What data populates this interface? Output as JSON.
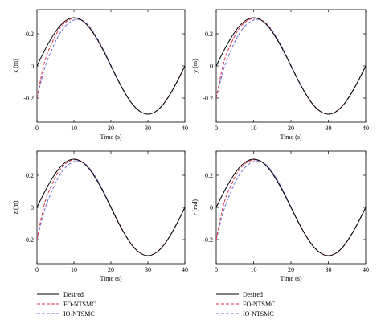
{
  "legend": {
    "entries": [
      {
        "label": "Desired",
        "color": "#000000",
        "dash": "solid"
      },
      {
        "label": "FO-NTSMC",
        "color": "#d9324b",
        "dash": "dashed"
      },
      {
        "label": "IO-NTSMC",
        "color": "#6f6fd6",
        "dash": "dashed"
      }
    ],
    "placement": "below each column"
  },
  "chart_data": [
    {
      "type": "line",
      "xlabel": "Time (s)",
      "ylabel": "x (m)",
      "xlim": [
        0,
        40
      ],
      "ylim": [
        -0.35,
        0.35
      ],
      "xticks": [
        "0",
        "10",
        "20",
        "30",
        "40"
      ],
      "yticks": [
        "0.2",
        "0",
        "-0.2"
      ],
      "grid": false,
      "series": [
        {
          "name": "Desired",
          "x": [
            0,
            2,
            4,
            6,
            8,
            10,
            12,
            14,
            16,
            18,
            20,
            22,
            24,
            26,
            28,
            30,
            32,
            34,
            36,
            38,
            40
          ],
          "y": [
            0.0,
            0.093,
            0.176,
            0.243,
            0.285,
            0.3,
            0.285,
            0.243,
            0.176,
            0.093,
            0.0,
            -0.093,
            -0.176,
            -0.243,
            -0.285,
            -0.3,
            -0.285,
            -0.243,
            -0.176,
            -0.093,
            0.0
          ]
        },
        {
          "name": "FO-NTSMC",
          "x": [
            0,
            2,
            4,
            6,
            8,
            10,
            12,
            14,
            16,
            18,
            20,
            22,
            24,
            26,
            28,
            30,
            32,
            34,
            36,
            38,
            40
          ],
          "y": [
            -0.2,
            0.02,
            0.14,
            0.228,
            0.277,
            0.296,
            0.287,
            0.245,
            0.177,
            0.094,
            0.0,
            -0.093,
            -0.176,
            -0.243,
            -0.285,
            -0.3,
            -0.285,
            -0.243,
            -0.176,
            -0.093,
            0.0
          ]
        },
        {
          "name": "IO-NTSMC",
          "x": [
            0,
            2,
            4,
            6,
            8,
            10,
            12,
            14,
            16,
            18,
            20,
            22,
            24,
            26,
            28,
            30,
            32,
            34,
            36,
            38,
            40
          ],
          "y": [
            -0.2,
            -0.02,
            0.1,
            0.195,
            0.255,
            0.285,
            0.286,
            0.25,
            0.185,
            0.1,
            0.005,
            -0.09,
            -0.174,
            -0.242,
            -0.284,
            -0.3,
            -0.285,
            -0.243,
            -0.176,
            -0.093,
            0.0
          ]
        }
      ]
    },
    {
      "type": "line",
      "xlabel": "Time (s)",
      "ylabel": "y (m)",
      "xlim": [
        0,
        40
      ],
      "ylim": [
        -0.35,
        0.35
      ],
      "xticks": [
        "0",
        "10",
        "20",
        "30",
        "40"
      ],
      "yticks": [
        "0.2",
        "0",
        "-0.2"
      ],
      "grid": false,
      "series": [
        {
          "name": "Desired",
          "x": [
            0,
            2,
            4,
            6,
            8,
            10,
            12,
            14,
            16,
            18,
            20,
            22,
            24,
            26,
            28,
            30,
            32,
            34,
            36,
            38,
            40
          ],
          "y": [
            0.0,
            0.093,
            0.176,
            0.243,
            0.285,
            0.3,
            0.285,
            0.243,
            0.176,
            0.093,
            0.0,
            -0.093,
            -0.176,
            -0.243,
            -0.285,
            -0.3,
            -0.285,
            -0.243,
            -0.176,
            -0.093,
            0.0
          ]
        },
        {
          "name": "FO-NTSMC",
          "x": [
            0,
            2,
            4,
            6,
            8,
            10,
            12,
            14,
            16,
            18,
            20,
            22,
            24,
            26,
            28,
            30,
            32,
            34,
            36,
            38,
            40
          ],
          "y": [
            -0.2,
            0.02,
            0.14,
            0.228,
            0.277,
            0.296,
            0.287,
            0.245,
            0.177,
            0.094,
            0.0,
            -0.093,
            -0.176,
            -0.243,
            -0.285,
            -0.3,
            -0.285,
            -0.243,
            -0.176,
            -0.093,
            0.0
          ]
        },
        {
          "name": "IO-NTSMC",
          "x": [
            0,
            2,
            4,
            6,
            8,
            10,
            12,
            14,
            16,
            18,
            20,
            22,
            24,
            26,
            28,
            30,
            32,
            34,
            36,
            38,
            40
          ],
          "y": [
            -0.2,
            -0.02,
            0.1,
            0.195,
            0.255,
            0.285,
            0.286,
            0.25,
            0.185,
            0.1,
            0.005,
            -0.09,
            -0.174,
            -0.242,
            -0.284,
            -0.3,
            -0.285,
            -0.243,
            -0.176,
            -0.093,
            0.0
          ]
        }
      ]
    },
    {
      "type": "line",
      "xlabel": "Time (s)",
      "ylabel": "z (m)",
      "xlim": [
        0,
        40
      ],
      "ylim": [
        -0.35,
        0.35
      ],
      "xticks": [
        "0",
        "10",
        "20",
        "30",
        "40"
      ],
      "yticks": [
        "0.2",
        "0",
        "-0.2"
      ],
      "grid": false,
      "series": [
        {
          "name": "Desired",
          "x": [
            0,
            2,
            4,
            6,
            8,
            10,
            12,
            14,
            16,
            18,
            20,
            22,
            24,
            26,
            28,
            30,
            32,
            34,
            36,
            38,
            40
          ],
          "y": [
            0.0,
            0.093,
            0.176,
            0.243,
            0.285,
            0.3,
            0.285,
            0.243,
            0.176,
            0.093,
            0.0,
            -0.093,
            -0.176,
            -0.243,
            -0.285,
            -0.3,
            -0.285,
            -0.243,
            -0.176,
            -0.093,
            0.0
          ]
        },
        {
          "name": "FO-NTSMC",
          "x": [
            0,
            2,
            4,
            6,
            8,
            10,
            12,
            14,
            16,
            18,
            20,
            22,
            24,
            26,
            28,
            30,
            32,
            34,
            36,
            38,
            40
          ],
          "y": [
            -0.2,
            0.02,
            0.14,
            0.228,
            0.277,
            0.296,
            0.287,
            0.245,
            0.177,
            0.094,
            0.0,
            -0.093,
            -0.176,
            -0.243,
            -0.285,
            -0.3,
            -0.285,
            -0.243,
            -0.176,
            -0.093,
            0.0
          ]
        },
        {
          "name": "IO-NTSMC",
          "x": [
            0,
            2,
            4,
            6,
            8,
            10,
            12,
            14,
            16,
            18,
            20,
            22,
            24,
            26,
            28,
            30,
            32,
            34,
            36,
            38,
            40
          ],
          "y": [
            -0.2,
            -0.02,
            0.1,
            0.195,
            0.255,
            0.285,
            0.286,
            0.25,
            0.185,
            0.1,
            0.005,
            -0.09,
            -0.174,
            -0.242,
            -0.284,
            -0.3,
            -0.285,
            -0.243,
            -0.176,
            -0.093,
            0.0
          ]
        }
      ]
    },
    {
      "type": "line",
      "xlabel": "Time (s)",
      "ylabel": "r (rad)",
      "xlim": [
        0,
        40
      ],
      "ylim": [
        -0.35,
        0.35
      ],
      "xticks": [
        "0",
        "10",
        "20",
        "30",
        "40"
      ],
      "yticks": [
        "0.2",
        "0",
        "-0.2"
      ],
      "grid": false,
      "series": [
        {
          "name": "Desired",
          "x": [
            0,
            2,
            4,
            6,
            8,
            10,
            12,
            14,
            16,
            18,
            20,
            22,
            24,
            26,
            28,
            30,
            32,
            34,
            36,
            38,
            40
          ],
          "y": [
            0.0,
            0.093,
            0.176,
            0.243,
            0.285,
            0.3,
            0.285,
            0.243,
            0.176,
            0.093,
            0.0,
            -0.093,
            -0.176,
            -0.243,
            -0.285,
            -0.3,
            -0.285,
            -0.243,
            -0.176,
            -0.093,
            0.0
          ]
        },
        {
          "name": "FO-NTSMC",
          "x": [
            0,
            2,
            4,
            6,
            8,
            10,
            12,
            14,
            16,
            18,
            20,
            22,
            24,
            26,
            28,
            30,
            32,
            34,
            36,
            38,
            40
          ],
          "y": [
            -0.2,
            0.02,
            0.14,
            0.228,
            0.277,
            0.296,
            0.287,
            0.245,
            0.177,
            0.094,
            0.0,
            -0.093,
            -0.176,
            -0.243,
            -0.285,
            -0.3,
            -0.285,
            -0.243,
            -0.176,
            -0.093,
            0.0
          ]
        },
        {
          "name": "IO-NTSMC",
          "x": [
            0,
            2,
            4,
            6,
            8,
            10,
            12,
            14,
            16,
            18,
            20,
            22,
            24,
            26,
            28,
            30,
            32,
            34,
            36,
            38,
            40
          ],
          "y": [
            -0.2,
            -0.02,
            0.1,
            0.195,
            0.255,
            0.285,
            0.286,
            0.25,
            0.185,
            0.1,
            0.005,
            -0.09,
            -0.174,
            -0.242,
            -0.284,
            -0.3,
            -0.285,
            -0.243,
            -0.176,
            -0.093,
            0.0
          ]
        }
      ]
    }
  ]
}
